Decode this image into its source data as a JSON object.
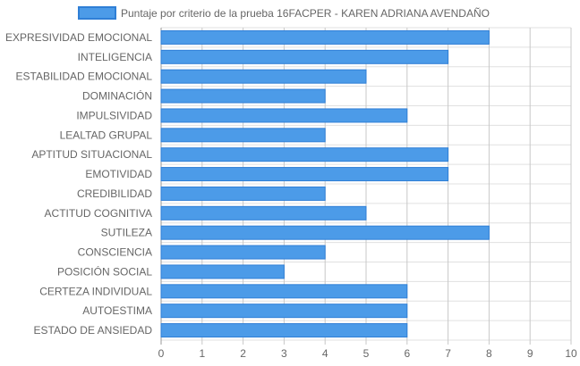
{
  "chart_data": {
    "type": "bar",
    "orientation": "horizontal",
    "categories": [
      "EXPRESIVIDAD EMOCIONAL",
      "INTELIGENCIA",
      "ESTABILIDAD EMOCIONAL",
      "DOMINACIÓN",
      "IMPULSIVIDAD",
      "LEALTAD GRUPAL",
      "APTITUD SITUACIONAL",
      "EMOTIVIDAD",
      "CREDIBILIDAD",
      "ACTITUD COGNITIVA",
      "SUTILEZA",
      "CONSCIENCIA",
      "POSICIÓN SOCIAL",
      "CERTEZA INDIVIDUAL",
      "AUTOESTIMA",
      "ESTADO DE ANSIEDAD"
    ],
    "series": [
      {
        "name": "Puntaje por criterio de la prueba 16FACPER - KAREN ADRIANA AVENDAÑO",
        "values": [
          8,
          7,
          5,
          4,
          6,
          4,
          7,
          7,
          4,
          5,
          8,
          4,
          3,
          6,
          6,
          6
        ]
      }
    ],
    "xlim": [
      0,
      10
    ],
    "xticks": [
      0,
      1,
      2,
      3,
      4,
      5,
      6,
      7,
      8,
      9,
      10
    ],
    "grid": true,
    "legend_position": "top",
    "colors": {
      "bar_fill": "#4c9be8",
      "bar_border": "#2f7fd6",
      "grid": "#e0e0e0",
      "grid_major": "#c8c8c8",
      "text": "#666666"
    }
  }
}
